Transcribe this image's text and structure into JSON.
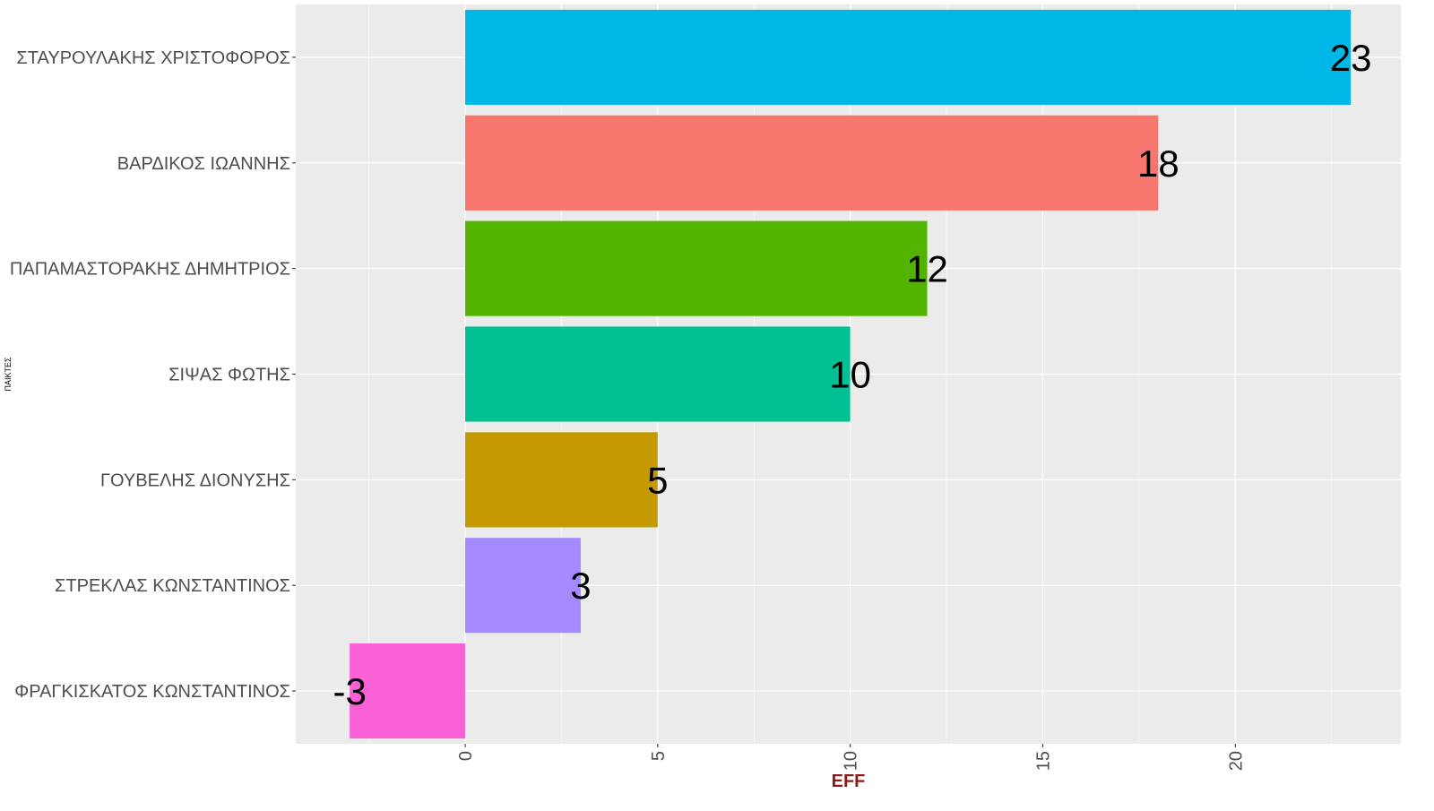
{
  "chart_data": {
    "type": "bar",
    "orientation": "horizontal",
    "xlabel": "EFF",
    "ylabel": "ΠΑΙΚΤΕΣ",
    "xlim": [
      -4.4,
      24.3
    ],
    "x_ticks": [
      0,
      5,
      10,
      15,
      20
    ],
    "grid": true,
    "legend": "none",
    "colors": {
      "panel_background": "#EBEBEB",
      "grid": "#FFFFFF",
      "axis_text": "#4D4D4D",
      "xlabel": "#8B1A1A",
      "value_label": "#000000"
    },
    "categories": [
      "ΣΤΑΥΡΟΥΛΑΚΗΣ ΧΡΙΣΤΟΦΟΡΟΣ",
      "ΒΑΡΔΙΚΟΣ ΙΩΑΝΝΗΣ",
      "ΠΑΠΑΜΑΣΤΟΡΑΚΗΣ ΔΗΜΗΤΡΙΟΣ",
      "ΣΙΨΑΣ ΦΩΤΗΣ",
      "ΓΟΥΒΕΛΗΣ ΔΙΟΝΥΣΗΣ",
      "ΣΤΡΕΚΛΑΣ ΚΩΝΣΤΑΝΤΙΝΟΣ",
      "ΦΡΑΓΚΙΣΚΑΤΟΣ ΚΩΝΣΤΑΝΤΙΝΟΣ"
    ],
    "values": [
      23,
      18,
      12,
      10,
      5,
      3,
      -3
    ],
    "value_labels": [
      "23",
      "18",
      "12",
      "10",
      "5",
      "3",
      "-3"
    ],
    "bar_colors": [
      "#00B8E7",
      "#F8766D",
      "#53B400",
      "#00C094",
      "#C49A00",
      "#A58AFF",
      "#FB61D7"
    ]
  }
}
